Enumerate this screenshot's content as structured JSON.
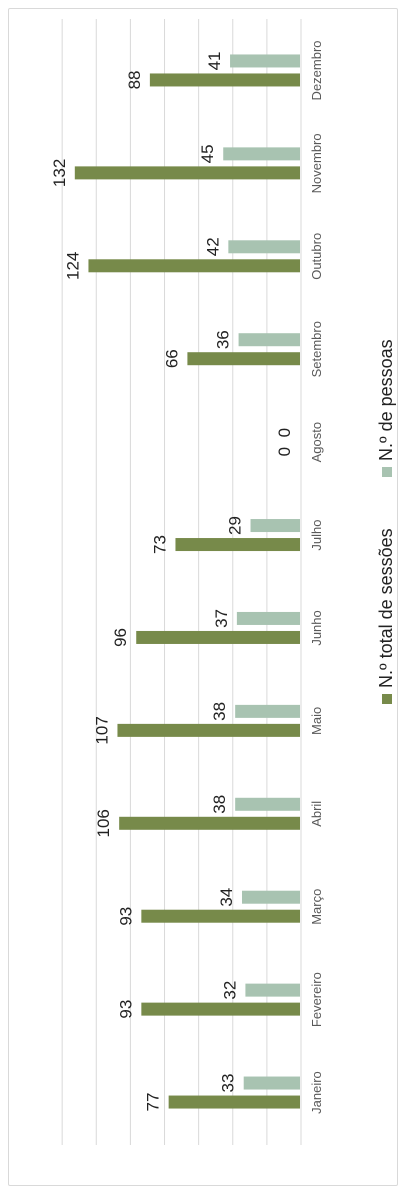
{
  "colors": {
    "sessions": "#778a4a",
    "people": "#a8c3b1",
    "grid": "#d9d9d9",
    "text": "#222222",
    "category_text": "#595959"
  },
  "chart_data": {
    "type": "bar",
    "orientation": "rotated-90-clockwise",
    "categories": [
      "Janeiro",
      "Fevereiro",
      "Março",
      "Abril",
      "Maio",
      "Junho",
      "Julho",
      "Agosto",
      "Setembro",
      "Outubro",
      "Novembro",
      "Dezembro"
    ],
    "series": [
      {
        "name": "N.º total de sessões",
        "values": [
          77,
          93,
          93,
          106,
          107,
          96,
          73,
          0,
          66,
          124,
          132,
          88
        ]
      },
      {
        "name": "N.º de pessoas",
        "values": [
          33,
          32,
          34,
          38,
          38,
          37,
          29,
          0,
          36,
          42,
          45,
          41
        ]
      }
    ],
    "ylim": [
      0,
      140
    ],
    "grid": true,
    "legend_position": "bottom",
    "data_labels": true
  }
}
